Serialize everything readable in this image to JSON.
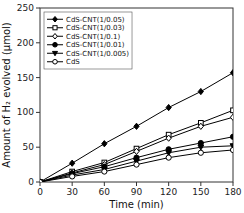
{
  "chart_data": {
    "type": "line",
    "x": [
      0,
      30,
      60,
      90,
      120,
      150,
      180
    ],
    "series": [
      {
        "name": "CdS-CNT(1/0.05)",
        "color": "black",
        "marker": "diamond",
        "values": [
          0,
          27,
          55,
          80,
          107,
          130,
          157
        ]
      },
      {
        "name": "CdS-CNT(1/0.03)",
        "color": "black",
        "marker": "square-open",
        "values": [
          0,
          15,
          28,
          48,
          68,
          85,
          103
        ]
      },
      {
        "name": "CdS-CNT(1/0.1)",
        "color": "black",
        "marker": "diamond-open",
        "values": [
          0,
          13,
          25,
          44,
          63,
          80,
          93
        ]
      },
      {
        "name": "CdS-CNT(1/0.01)",
        "color": "black",
        "marker": "circle",
        "values": [
          0,
          12,
          22,
          35,
          47,
          56,
          65
        ]
      },
      {
        "name": "CdS-CNT(1/0.005)",
        "color": "black",
        "marker": "triangle-down",
        "values": [
          0,
          10,
          18,
          30,
          42,
          50,
          52
        ]
      },
      {
        "name": "CdS",
        "color": "black",
        "marker": "circle-open",
        "values": [
          0,
          8,
          15,
          25,
          35,
          42,
          46
        ]
      }
    ],
    "xlabel": "Time (min)",
    "ylabel": "Amount of H₂ evolved (μmol)",
    "xlim": [
      0,
      180
    ],
    "ylim": [
      0,
      250
    ],
    "xticks": [
      0,
      30,
      60,
      90,
      120,
      150,
      180
    ],
    "yticks": [
      0,
      50,
      100,
      150,
      200,
      250
    ],
    "legend": "upper left",
    "grid": false
  }
}
